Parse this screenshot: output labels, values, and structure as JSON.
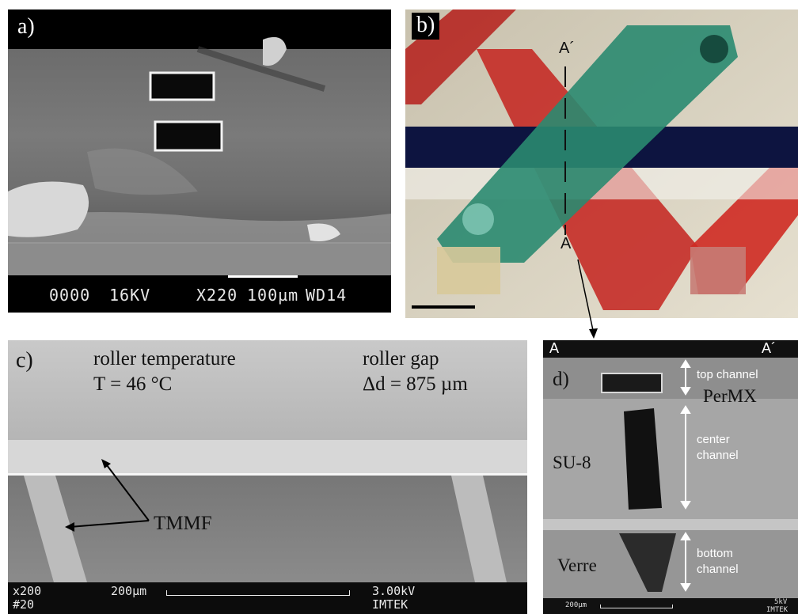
{
  "panels": {
    "a": {
      "label": "a)",
      "info_bar": {
        "code": "0000",
        "voltage": "16KV",
        "magnification": "X220",
        "scale": "100µm",
        "wd": "WD14"
      }
    },
    "b": {
      "label": "b)",
      "section_top": "A´",
      "section_bottom": "A"
    },
    "c": {
      "label": "c)",
      "roller_temperature_label": "roller temperature",
      "roller_temperature_value": "T = 46 °C",
      "roller_gap_label": "roller gap",
      "roller_gap_value": "Δd = 875 µm",
      "material": "TMMF",
      "footer": {
        "mag": "x200",
        "num": "#20",
        "scale": "200µm",
        "voltage": "3.00kV",
        "org": "IMTEK"
      }
    },
    "d": {
      "label": "d)",
      "section_left": "A",
      "section_right": "A´",
      "top_channel": [
        "top channel"
      ],
      "center_channel": [
        "center",
        "channel"
      ],
      "bottom_channel": [
        "bottom",
        "channel"
      ],
      "layers": [
        "PerMX",
        "SU-8",
        "Verre"
      ],
      "footer": {
        "scale": "200µm",
        "voltage": "5kV",
        "org": "IMTEK"
      }
    }
  }
}
